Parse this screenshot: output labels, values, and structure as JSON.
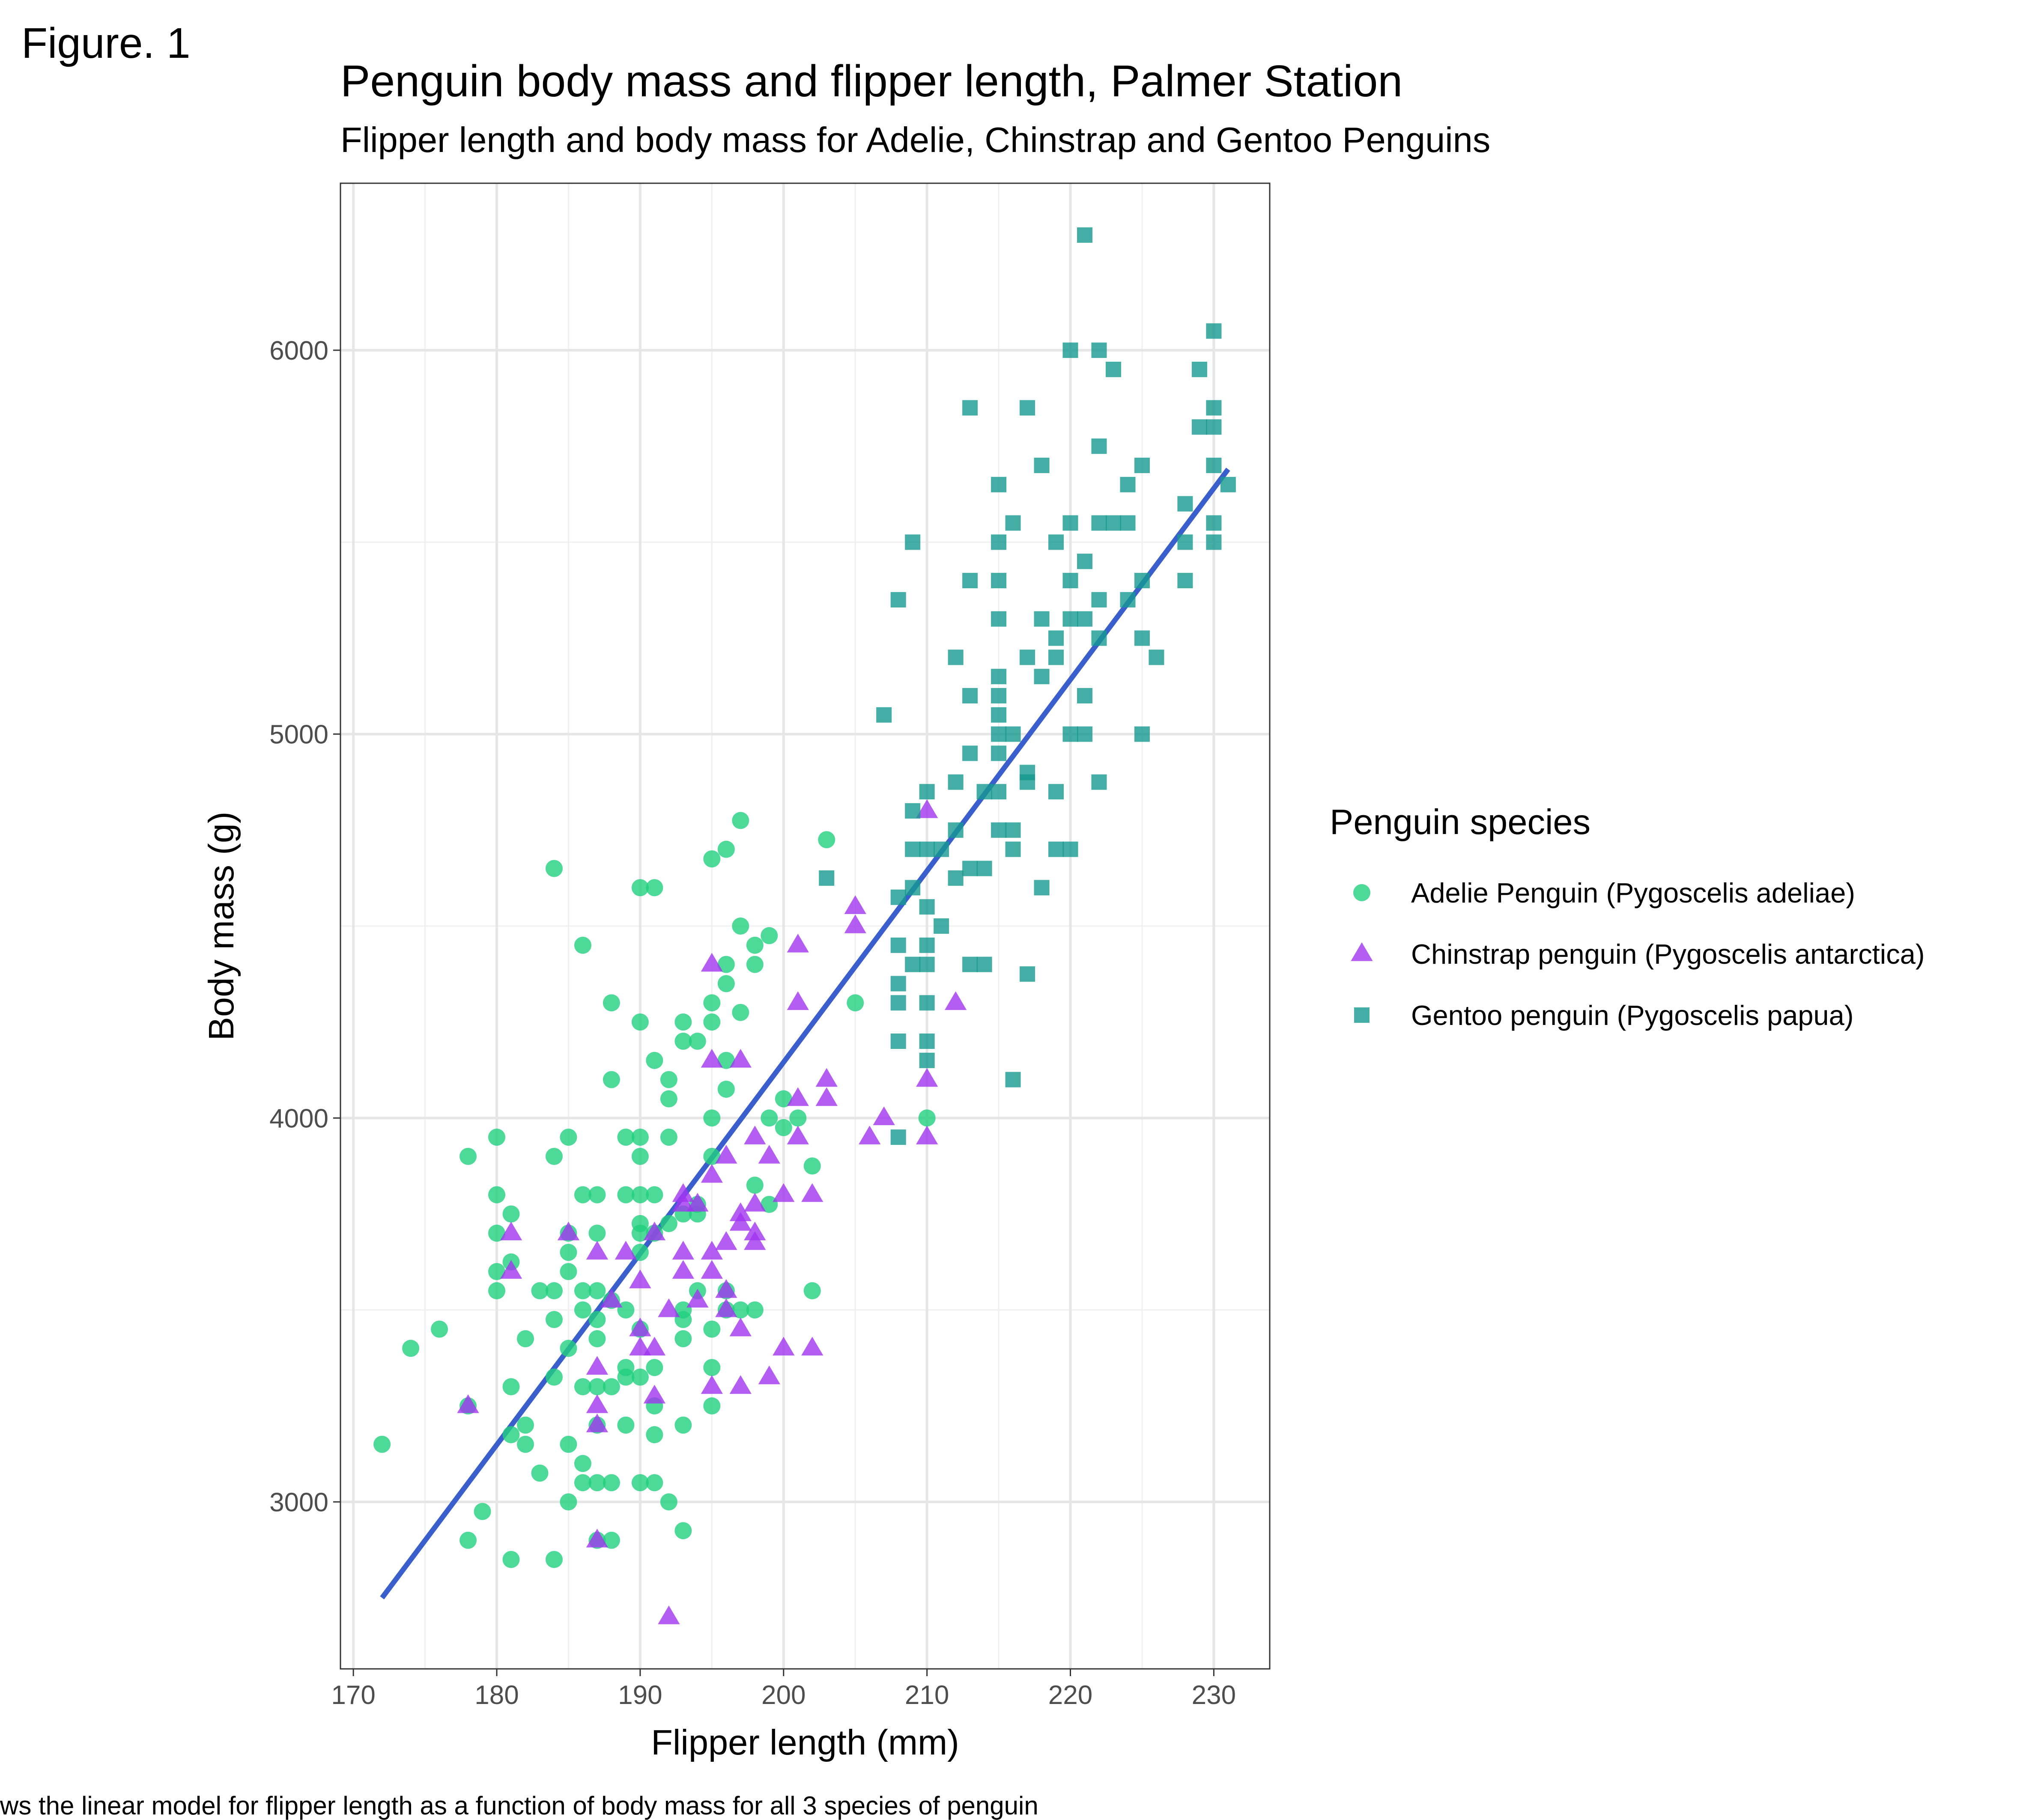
{
  "figure_label": "Figure. 1",
  "caption": "ws the linear model for flipper length as a function of body mass for all 3 species of penguin",
  "chart_data": {
    "type": "scatter",
    "title": "Penguin body mass and flipper length, Palmer Station",
    "subtitle": "Flipper length and body mass for Adelie, Chinstrap and Gentoo Penguins",
    "xlabel": "Flipper length (mm)",
    "ylabel": "Body mass (g)",
    "xlim": [
      169.1,
      233.9
    ],
    "ylim": [
      2565,
      6435
    ],
    "x_ticks": [
      170,
      180,
      190,
      200,
      210,
      220,
      230
    ],
    "y_ticks": [
      3000,
      4000,
      5000,
      6000
    ],
    "grid": true,
    "legend_title": "Penguin species",
    "legend_position": "right",
    "series": [
      {
        "name": "Adelie Penguin (Pygoscelis adeliae)",
        "marker": "circle",
        "color": "#21D07D",
        "points": [
          [
            172,
            3150
          ],
          [
            174,
            3400
          ],
          [
            176,
            3450
          ],
          [
            178,
            3900
          ],
          [
            178,
            3250
          ],
          [
            178,
            2900
          ],
          [
            179,
            2975
          ],
          [
            180,
            3950
          ],
          [
            180,
            3800
          ],
          [
            180,
            3700
          ],
          [
            180,
            3600
          ],
          [
            180,
            3550
          ],
          [
            181,
            3750
          ],
          [
            181,
            3625
          ],
          [
            181,
            3300
          ],
          [
            181,
            3175
          ],
          [
            181,
            2850
          ],
          [
            182,
            3425
          ],
          [
            182,
            3200
          ],
          [
            182,
            3150
          ],
          [
            183,
            3550
          ],
          [
            183,
            3075
          ],
          [
            184,
            4650
          ],
          [
            184,
            3900
          ],
          [
            184,
            3550
          ],
          [
            184,
            3475
          ],
          [
            184,
            3325
          ],
          [
            184,
            2850
          ],
          [
            185,
            3950
          ],
          [
            185,
            3700
          ],
          [
            185,
            3650
          ],
          [
            185,
            3600
          ],
          [
            185,
            3400
          ],
          [
            185,
            3150
          ],
          [
            185,
            3000
          ],
          [
            186,
            4450
          ],
          [
            186,
            3800
          ],
          [
            186,
            3550
          ],
          [
            186,
            3500
          ],
          [
            186,
            3300
          ],
          [
            186,
            3100
          ],
          [
            186,
            3050
          ],
          [
            187,
            3800
          ],
          [
            187,
            3700
          ],
          [
            187,
            3550
          ],
          [
            187,
            3475
          ],
          [
            187,
            3425
          ],
          [
            187,
            3300
          ],
          [
            187,
            3200
          ],
          [
            187,
            3050
          ],
          [
            187,
            2900
          ],
          [
            188,
            4300
          ],
          [
            188,
            4100
          ],
          [
            188,
            3525
          ],
          [
            188,
            3300
          ],
          [
            188,
            3050
          ],
          [
            188,
            2900
          ],
          [
            189,
            3950
          ],
          [
            189,
            3800
          ],
          [
            189,
            3500
          ],
          [
            189,
            3350
          ],
          [
            189,
            3325
          ],
          [
            189,
            3200
          ],
          [
            190,
            4600
          ],
          [
            190,
            4250
          ],
          [
            190,
            3950
          ],
          [
            190,
            3900
          ],
          [
            190,
            3800
          ],
          [
            190,
            3725
          ],
          [
            190,
            3700
          ],
          [
            190,
            3650
          ],
          [
            190,
            3450
          ],
          [
            190,
            3325
          ],
          [
            190,
            3050
          ],
          [
            191,
            4600
          ],
          [
            191,
            4150
          ],
          [
            191,
            3800
          ],
          [
            191,
            3700
          ],
          [
            191,
            3350
          ],
          [
            191,
            3250
          ],
          [
            191,
            3175
          ],
          [
            191,
            3050
          ],
          [
            192,
            4100
          ],
          [
            192,
            4050
          ],
          [
            192,
            3950
          ],
          [
            192,
            3725
          ],
          [
            192,
            3000
          ],
          [
            193,
            4250
          ],
          [
            193,
            4200
          ],
          [
            193,
            3750
          ],
          [
            193,
            3500
          ],
          [
            193,
            3475
          ],
          [
            193,
            3425
          ],
          [
            193,
            3200
          ],
          [
            193,
            2925
          ],
          [
            194,
            4200
          ],
          [
            194,
            3775
          ],
          [
            194,
            3750
          ],
          [
            194,
            3550
          ],
          [
            195,
            4675
          ],
          [
            195,
            4300
          ],
          [
            195,
            4250
          ],
          [
            195,
            4000
          ],
          [
            195,
            3900
          ],
          [
            195,
            3450
          ],
          [
            195,
            3350
          ],
          [
            195,
            3250
          ],
          [
            196,
            4700
          ],
          [
            196,
            4400
          ],
          [
            196,
            4350
          ],
          [
            196,
            4150
          ],
          [
            196,
            4075
          ],
          [
            196,
            3550
          ],
          [
            196,
            3500
          ],
          [
            197,
            4775
          ],
          [
            197,
            4500
          ],
          [
            197,
            4275
          ],
          [
            197,
            3500
          ],
          [
            198,
            4450
          ],
          [
            198,
            4400
          ],
          [
            198,
            3825
          ],
          [
            198,
            3500
          ],
          [
            199,
            4475
          ],
          [
            199,
            4000
          ],
          [
            199,
            3775
          ],
          [
            200,
            4050
          ],
          [
            200,
            3975
          ],
          [
            201,
            4000
          ],
          [
            202,
            3875
          ],
          [
            202,
            3550
          ],
          [
            203,
            4725
          ],
          [
            205,
            4300
          ],
          [
            210,
            4000
          ]
        ]
      },
      {
        "name": "Chinstrap penguin (Pygoscelis antarctica)",
        "marker": "triangle",
        "color": "#A035F0",
        "points": [
          [
            178,
            3250
          ],
          [
            181,
            3700
          ],
          [
            181,
            3600
          ],
          [
            185,
            3700
          ],
          [
            187,
            3650
          ],
          [
            187,
            3350
          ],
          [
            187,
            3250
          ],
          [
            187,
            3200
          ],
          [
            187,
            2900
          ],
          [
            188,
            3525
          ],
          [
            189,
            3650
          ],
          [
            190,
            3575
          ],
          [
            190,
            3450
          ],
          [
            190,
            3400
          ],
          [
            191,
            3700
          ],
          [
            191,
            3400
          ],
          [
            191,
            3275
          ],
          [
            192,
            3500
          ],
          [
            192,
            2700
          ],
          [
            193,
            3800
          ],
          [
            193,
            3775
          ],
          [
            193,
            3650
          ],
          [
            193,
            3600
          ],
          [
            194,
            3775
          ],
          [
            194,
            3525
          ],
          [
            195,
            4400
          ],
          [
            195,
            4150
          ],
          [
            195,
            3850
          ],
          [
            195,
            3650
          ],
          [
            195,
            3600
          ],
          [
            195,
            3300
          ],
          [
            196,
            3900
          ],
          [
            196,
            3675
          ],
          [
            196,
            3550
          ],
          [
            196,
            3500
          ],
          [
            197,
            4150
          ],
          [
            197,
            3750
          ],
          [
            197,
            3725
          ],
          [
            197,
            3450
          ],
          [
            197,
            3300
          ],
          [
            198,
            3950
          ],
          [
            198,
            3775
          ],
          [
            198,
            3700
          ],
          [
            198,
            3675
          ],
          [
            199,
            3900
          ],
          [
            199,
            3325
          ],
          [
            200,
            3800
          ],
          [
            200,
            3400
          ],
          [
            201,
            4450
          ],
          [
            201,
            4300
          ],
          [
            201,
            4050
          ],
          [
            201,
            3950
          ],
          [
            202,
            3800
          ],
          [
            202,
            3400
          ],
          [
            203,
            4100
          ],
          [
            203,
            4050
          ],
          [
            205,
            4550
          ],
          [
            205,
            4500
          ],
          [
            206,
            3950
          ],
          [
            207,
            4000
          ],
          [
            210,
            4800
          ],
          [
            210,
            4100
          ],
          [
            210,
            3950
          ],
          [
            212,
            4300
          ]
        ]
      },
      {
        "name": "Gentoo penguin (Pygoscelis papua)",
        "marker": "square",
        "color": "#159990",
        "points": [
          [
            203,
            4625
          ],
          [
            207,
            5050
          ],
          [
            208,
            5350
          ],
          [
            208,
            4575
          ],
          [
            208,
            4450
          ],
          [
            208,
            4350
          ],
          [
            208,
            4300
          ],
          [
            208,
            4200
          ],
          [
            208,
            3950
          ],
          [
            209,
            5500
          ],
          [
            209,
            4800
          ],
          [
            209,
            4700
          ],
          [
            209,
            4600
          ],
          [
            209,
            4400
          ],
          [
            210,
            4850
          ],
          [
            210,
            4700
          ],
          [
            210,
            4550
          ],
          [
            210,
            4450
          ],
          [
            210,
            4400
          ],
          [
            210,
            4300
          ],
          [
            210,
            4200
          ],
          [
            210,
            4150
          ],
          [
            211,
            4700
          ],
          [
            211,
            4500
          ],
          [
            212,
            5200
          ],
          [
            212,
            4875
          ],
          [
            212,
            4750
          ],
          [
            212,
            4625
          ],
          [
            213,
            5850
          ],
          [
            213,
            5400
          ],
          [
            213,
            5100
          ],
          [
            213,
            4950
          ],
          [
            213,
            4650
          ],
          [
            213,
            4400
          ],
          [
            214,
            4850
          ],
          [
            214,
            4650
          ],
          [
            214,
            4400
          ],
          [
            215,
            5650
          ],
          [
            215,
            5500
          ],
          [
            215,
            5400
          ],
          [
            215,
            5300
          ],
          [
            215,
            5150
          ],
          [
            215,
            5100
          ],
          [
            215,
            5050
          ],
          [
            215,
            5000
          ],
          [
            215,
            4950
          ],
          [
            215,
            4850
          ],
          [
            215,
            4750
          ],
          [
            216,
            5550
          ],
          [
            216,
            5000
          ],
          [
            216,
            4750
          ],
          [
            216,
            4700
          ],
          [
            216,
            4100
          ],
          [
            217,
            5850
          ],
          [
            217,
            5200
          ],
          [
            217,
            4900
          ],
          [
            217,
            4875
          ],
          [
            217,
            4375
          ],
          [
            218,
            5700
          ],
          [
            218,
            5300
          ],
          [
            218,
            5150
          ],
          [
            218,
            4600
          ],
          [
            219,
            5500
          ],
          [
            219,
            5250
          ],
          [
            219,
            5200
          ],
          [
            219,
            4850
          ],
          [
            219,
            4700
          ],
          [
            220,
            6000
          ],
          [
            220,
            5550
          ],
          [
            220,
            5400
          ],
          [
            220,
            5300
          ],
          [
            220,
            5000
          ],
          [
            220,
            4700
          ],
          [
            221,
            6300
          ],
          [
            221,
            5450
          ],
          [
            221,
            5300
          ],
          [
            221,
            5100
          ],
          [
            221,
            5000
          ],
          [
            222,
            6000
          ],
          [
            222,
            5750
          ],
          [
            222,
            5550
          ],
          [
            222,
            5350
          ],
          [
            222,
            5250
          ],
          [
            222,
            4875
          ],
          [
            223,
            5950
          ],
          [
            223,
            5550
          ],
          [
            224,
            5650
          ],
          [
            224,
            5550
          ],
          [
            224,
            5350
          ],
          [
            225,
            5700
          ],
          [
            225,
            5400
          ],
          [
            225,
            5250
          ],
          [
            225,
            5000
          ],
          [
            226,
            5200
          ],
          [
            228,
            5600
          ],
          [
            228,
            5500
          ],
          [
            228,
            5400
          ],
          [
            229,
            5950
          ],
          [
            229,
            5800
          ],
          [
            230,
            6050
          ],
          [
            230,
            5850
          ],
          [
            230,
            5800
          ],
          [
            230,
            5700
          ],
          [
            230,
            5550
          ],
          [
            230,
            5500
          ],
          [
            231,
            5650
          ]
        ]
      }
    ],
    "fit_line": {
      "type": "linear",
      "color": "#3A5FCD",
      "x": [
        172,
        231
      ],
      "y": [
        2750,
        5690
      ]
    }
  }
}
